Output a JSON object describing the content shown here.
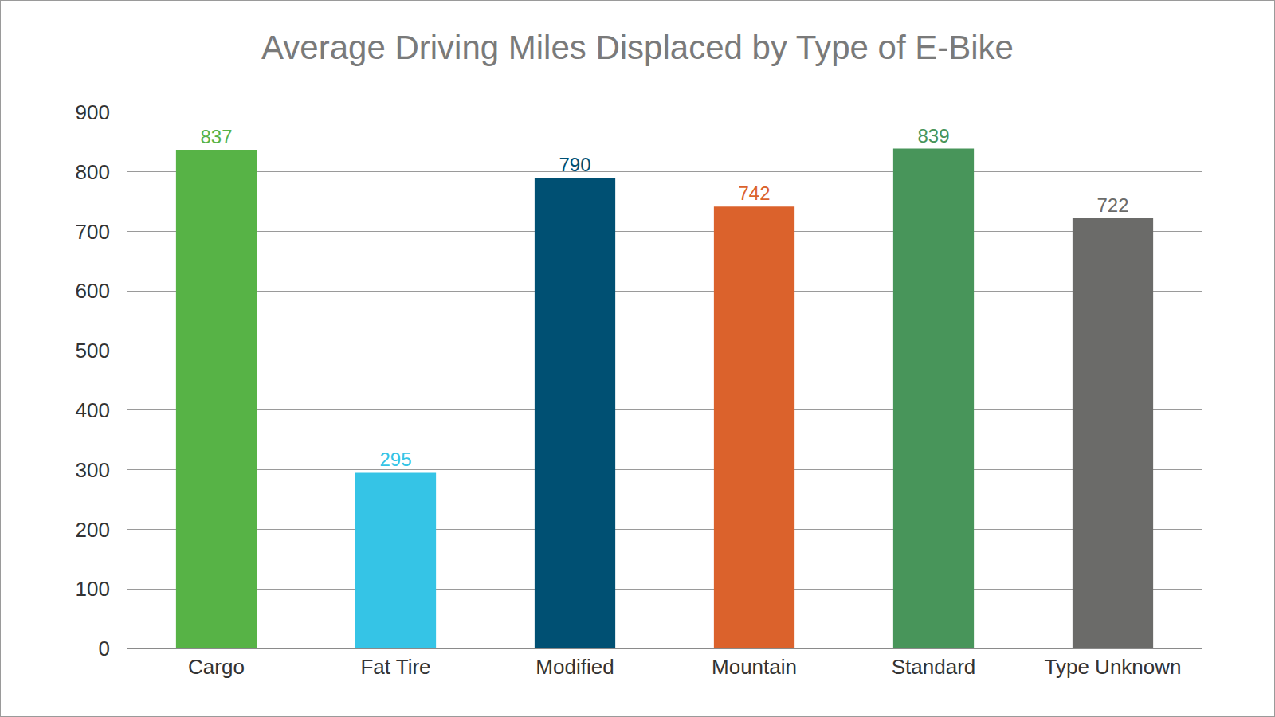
{
  "chart_data": {
    "type": "bar",
    "title": "Average Driving Miles Displaced by Type of E-Bike",
    "categories": [
      "Cargo",
      "Fat Tire",
      "Modified",
      "Mountain",
      "Standard",
      "Type Unknown"
    ],
    "values": [
      837,
      295,
      790,
      742,
      839,
      722
    ],
    "colors": [
      "#57b346",
      "#35c4e6",
      "#005073",
      "#db622c",
      "#48955a",
      "#6b6b69"
    ],
    "ylim": [
      0,
      900
    ],
    "yticks": [
      0,
      100,
      200,
      300,
      400,
      500,
      600,
      700,
      800,
      900
    ],
    "grid": true,
    "data_labels": true
  }
}
